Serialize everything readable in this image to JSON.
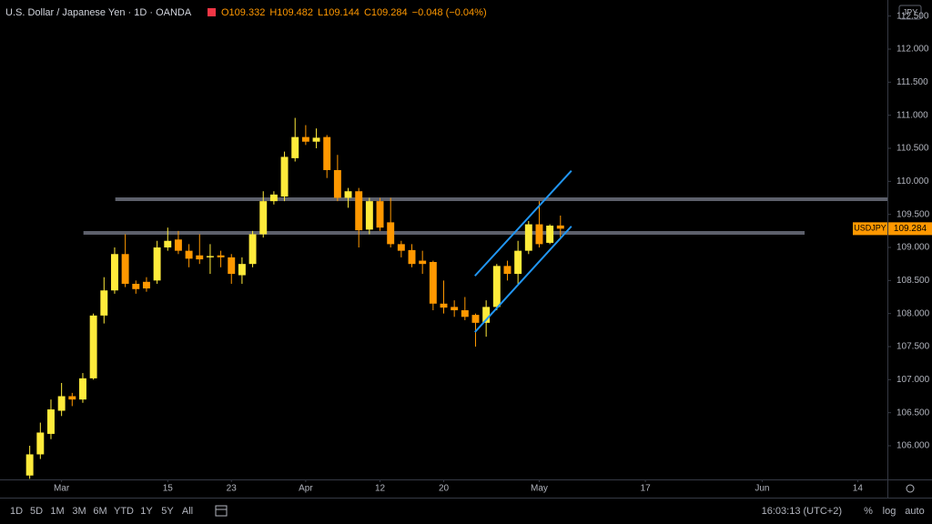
{
  "chart_data": {
    "type": "candlestick",
    "title": "U.S. Dollar / Japanese Yen · 1D · OANDA",
    "legend": [
      "O109.332",
      "H109.482",
      "L109.144",
      "C109.284",
      "−0.048 (−0.04%)"
    ],
    "currency": "JPY",
    "categories": [
      null,
      null,
      null,
      null,
      null,
      null,
      null,
      null,
      null,
      null,
      null,
      null,
      null,
      null,
      null,
      null,
      null,
      null,
      null,
      null,
      null,
      null,
      null,
      null,
      null,
      null,
      null,
      null,
      null,
      null,
      null,
      null,
      null,
      null,
      null,
      null,
      null,
      null,
      null,
      null,
      null,
      null,
      null,
      null,
      null,
      null,
      null,
      null,
      null,
      null,
      null
    ],
    "open": [
      105.55,
      105.87,
      106.18,
      106.53,
      106.75,
      106.7,
      107.02,
      107.97,
      108.35,
      108.9,
      108.45,
      108.48,
      108.5,
      109.0,
      109.12,
      108.95,
      108.88,
      108.85,
      108.88,
      108.85,
      108.58,
      108.75,
      109.2,
      109.7,
      109.77,
      110.35,
      110.67,
      110.6,
      110.67,
      110.17,
      109.75,
      109.85,
      109.27,
      109.7,
      109.38,
      109.05,
      108.96,
      108.8,
      108.78,
      108.15,
      108.1,
      108.05,
      107.98,
      107.86,
      108.1,
      108.72,
      108.6,
      108.95,
      109.35,
      109.07,
      109.332
    ],
    "high": [
      106.0,
      106.35,
      106.7,
      106.95,
      106.8,
      107.1,
      108.0,
      108.55,
      109.0,
      109.2,
      108.5,
      108.55,
      109.1,
      109.3,
      109.25,
      109.05,
      109.2,
      109.05,
      108.95,
      108.9,
      108.85,
      109.25,
      109.85,
      109.85,
      110.45,
      110.96,
      110.85,
      110.8,
      110.7,
      110.4,
      109.9,
      109.9,
      109.75,
      109.75,
      109.75,
      109.1,
      109.05,
      108.95,
      108.8,
      108.5,
      108.2,
      108.25,
      108.0,
      108.2,
      108.75,
      108.8,
      109.1,
      109.4,
      109.7,
      109.35,
      109.482
    ],
    "low": [
      105.5,
      105.8,
      106.1,
      106.45,
      106.6,
      106.65,
      107.0,
      107.85,
      108.3,
      108.4,
      108.3,
      108.33,
      108.45,
      108.95,
      108.9,
      108.7,
      108.75,
      108.6,
      108.7,
      108.45,
      108.45,
      108.7,
      109.15,
      109.65,
      109.7,
      110.3,
      110.55,
      110.5,
      110.05,
      109.7,
      109.6,
      109.0,
      109.2,
      109.25,
      109.0,
      108.85,
      108.7,
      108.6,
      108.05,
      108.0,
      107.95,
      107.9,
      107.5,
      107.65,
      108.05,
      108.5,
      108.45,
      108.9,
      109.0,
      109.05,
      109.144
    ],
    "close": [
      105.87,
      106.2,
      106.55,
      106.75,
      106.7,
      107.02,
      107.97,
      108.35,
      108.9,
      108.45,
      108.37,
      108.38,
      109.0,
      109.1,
      108.95,
      108.83,
      108.82,
      108.87,
      108.85,
      108.6,
      108.75,
      109.2,
      109.7,
      109.8,
      110.37,
      110.67,
      110.6,
      110.66,
      110.17,
      109.75,
      109.85,
      109.26,
      109.7,
      109.3,
      109.05,
      108.95,
      108.75,
      108.75,
      108.15,
      108.09,
      108.05,
      107.95,
      107.86,
      108.1,
      108.72,
      108.6,
      108.95,
      109.35,
      109.05,
      109.33,
      109.284
    ],
    "up_color": "#ffeb3b",
    "down_color": "#ff9800",
    "xlim": [
      -2.8,
      80.8
    ],
    "xticks": [
      {
        "value": 3,
        "label": "Mar"
      },
      {
        "value": 13,
        "label": "15"
      },
      {
        "value": 19,
        "label": "23"
      },
      {
        "value": 26,
        "label": "Apr"
      },
      {
        "value": 33,
        "label": "12"
      },
      {
        "value": 39,
        "label": "20"
      },
      {
        "value": 48,
        "label": "May"
      },
      {
        "value": 58,
        "label": "17"
      },
      {
        "value": 69,
        "label": "Jun"
      },
      {
        "value": 78,
        "label": "14"
      }
    ],
    "ylim": [
      105.491,
      112.743
    ],
    "yticks": [
      {
        "value": 106,
        "label": "106.000"
      },
      {
        "value": 106.5,
        "label": "106.500"
      },
      {
        "value": 107,
        "label": "107.000"
      },
      {
        "value": 107.5,
        "label": "107.500"
      },
      {
        "value": 108,
        "label": "108.000"
      },
      {
        "value": 108.5,
        "label": "108.500"
      },
      {
        "value": 109,
        "label": "109.000"
      },
      {
        "value": 109.5,
        "label": "109.500"
      },
      {
        "value": 110,
        "label": "110.000"
      },
      {
        "value": 110.5,
        "label": "110.500"
      },
      {
        "value": 111,
        "label": "111.000"
      },
      {
        "value": 111.5,
        "label": "111.500"
      },
      {
        "value": 112,
        "label": "112.000"
      },
      {
        "value": 112.5,
        "label": "112.500"
      }
    ],
    "grid": false,
    "horizontal_lines": [
      {
        "value": 109.73,
        "from": 8.06,
        "to": 80.8,
        "color": "#5d606b"
      },
      {
        "value": 109.22,
        "from": 5.06,
        "to": 73.0,
        "color": "#5d606b"
      }
    ],
    "trend_lines": [
      {
        "points": [
          [
            41.94,
            108.57
          ],
          [
            51.03,
            110.16
          ]
        ],
        "color": "#2196f3"
      },
      {
        "points": [
          [
            41.94,
            107.72
          ],
          [
            51.03,
            109.32
          ]
        ],
        "color": "#2196f3"
      }
    ],
    "last_price": {
      "symbol": "USDJPY",
      "value": 109.284,
      "color": "#ff9800"
    },
    "toolbar": {
      "ranges": [
        "1D",
        "5D",
        "1M",
        "3M",
        "6M",
        "YTD",
        "1Y",
        "5Y",
        "All"
      ],
      "time": "16:03:13 (UTC+2)",
      "options": [
        "%",
        "log",
        "auto"
      ]
    }
  }
}
